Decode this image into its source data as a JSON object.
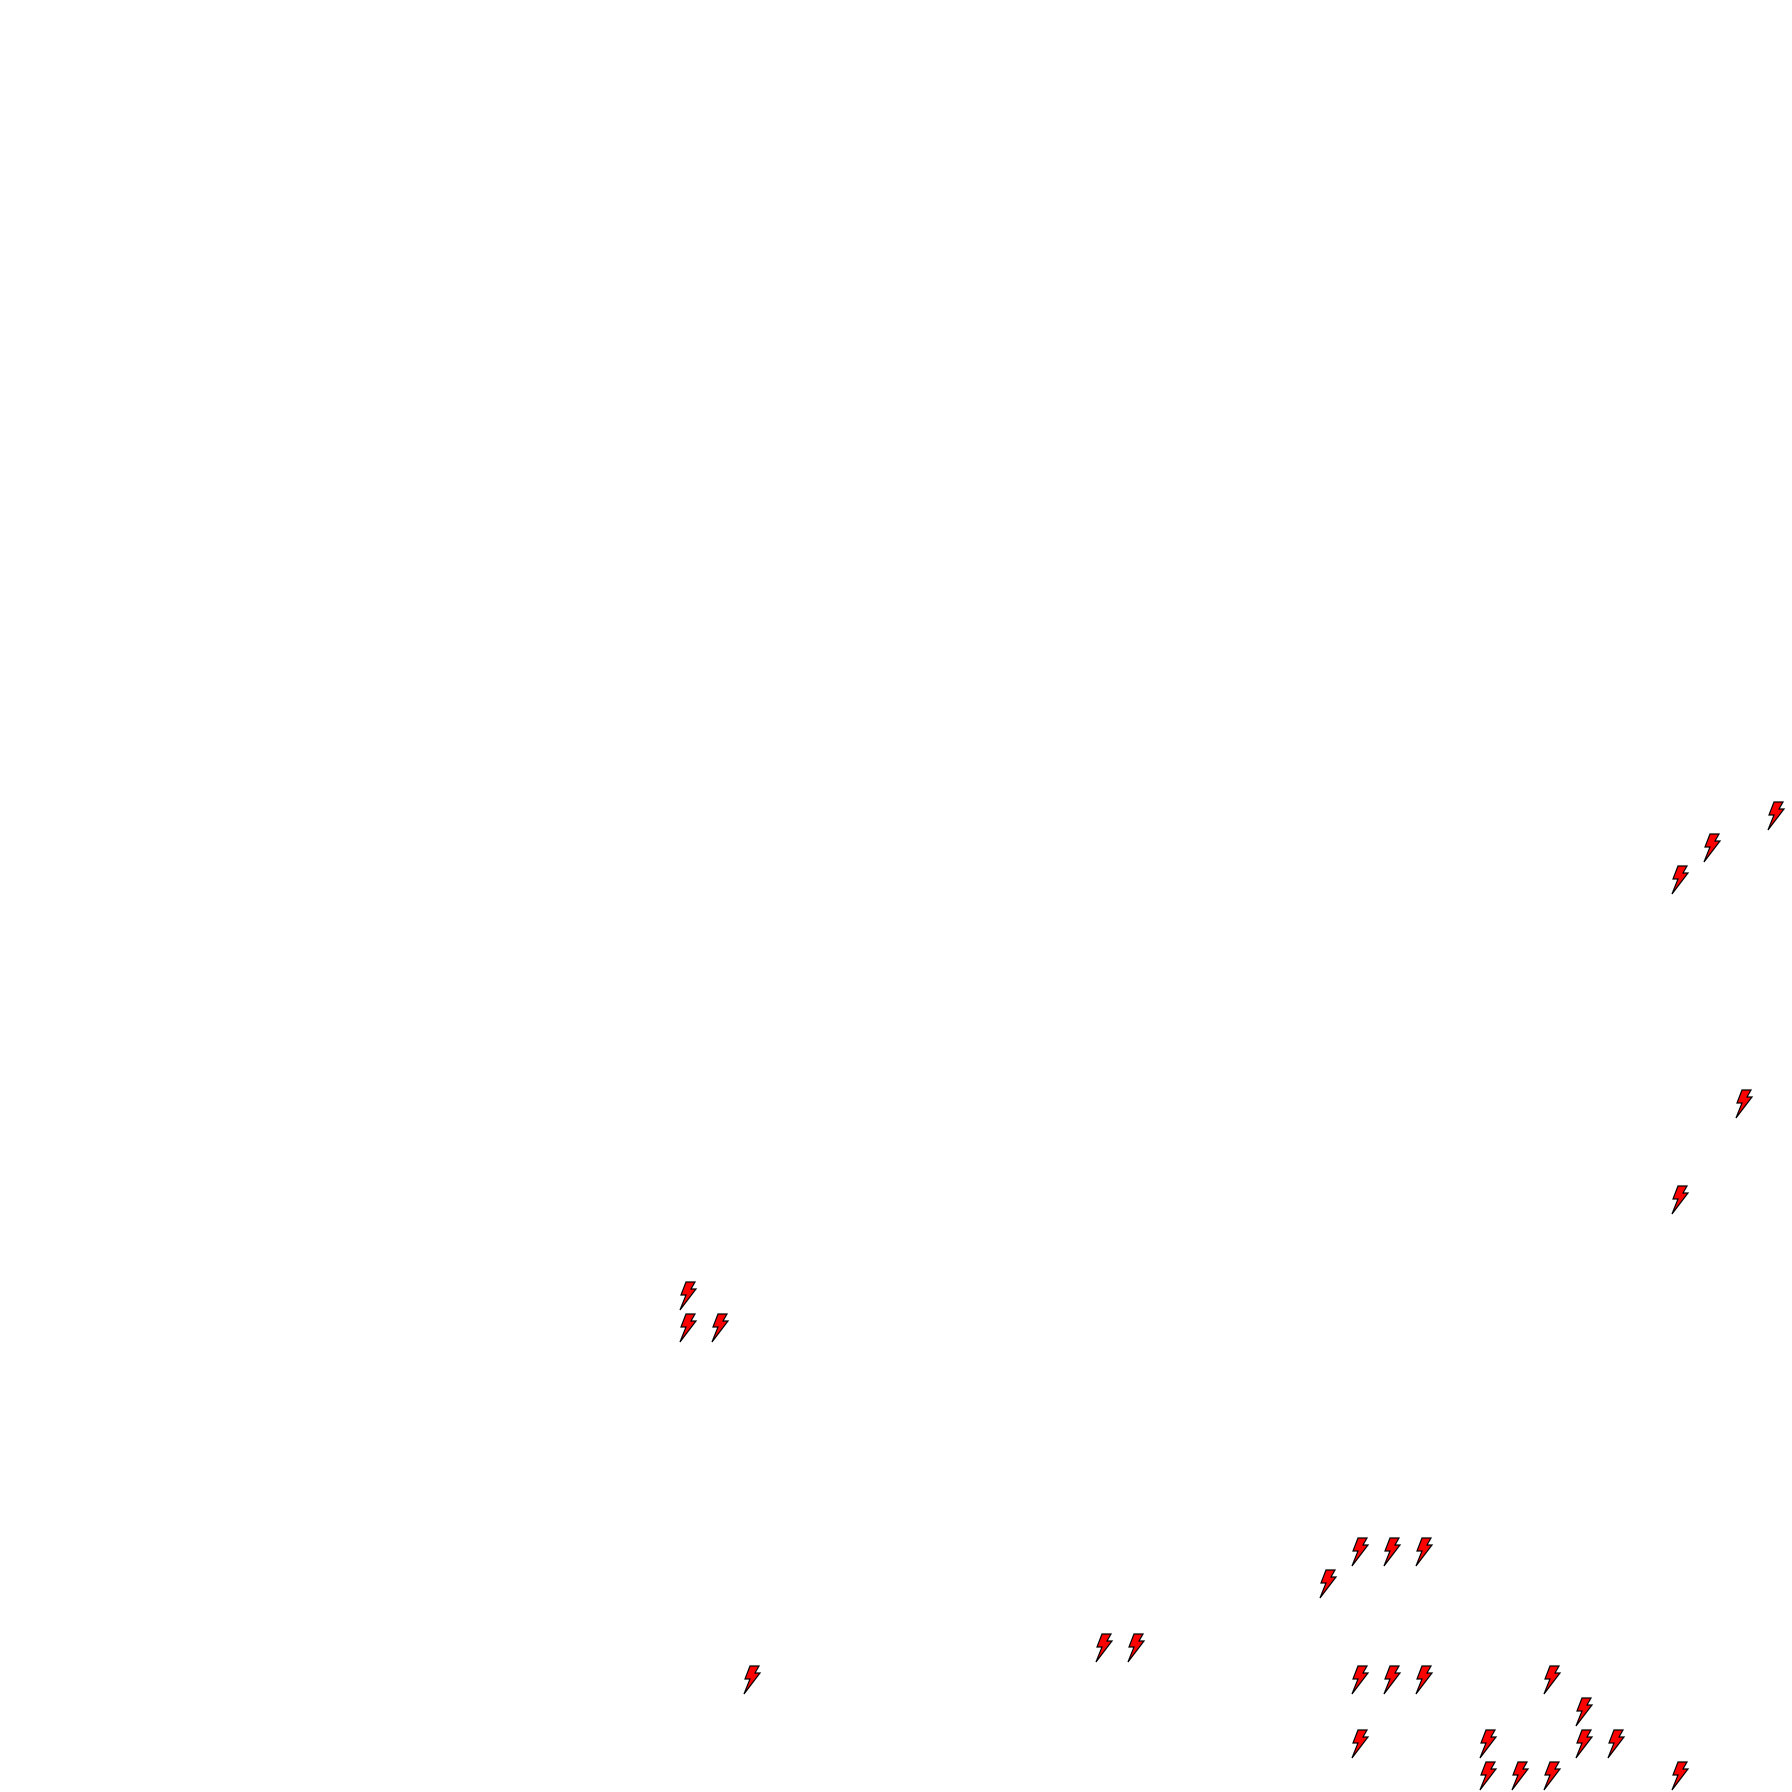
{
  "board": {
    "background_color": "#ffffff",
    "piece_icon": "lightning-bolt-icon",
    "piece_fill": "#ff0000",
    "piece_stroke": "#000000"
  }
}
